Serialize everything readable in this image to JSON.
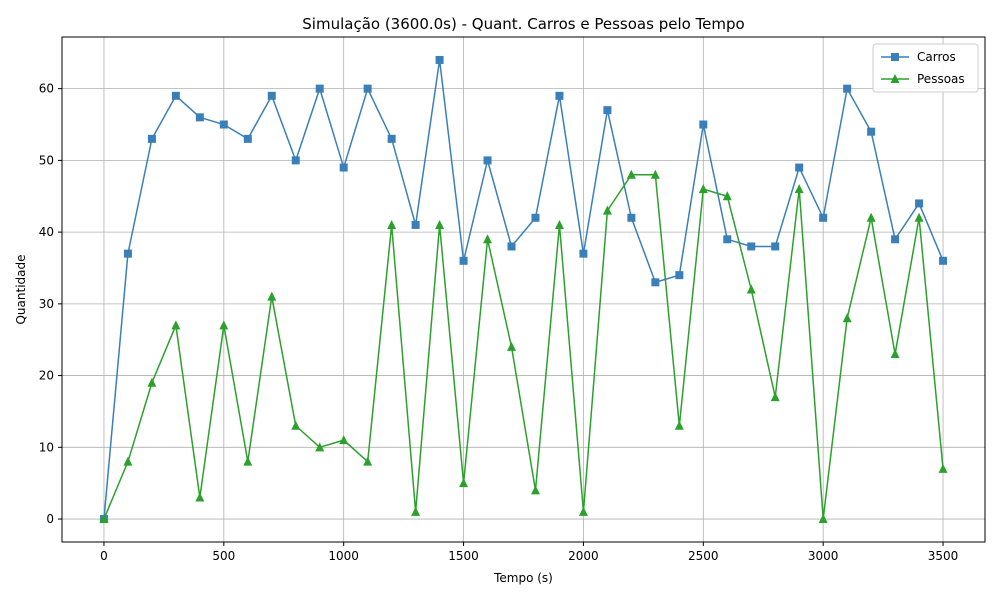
{
  "chart_data": {
    "type": "line",
    "title": "Simulação (3600.0s) - Quant. Carros e Pessoas pelo Tempo",
    "xlabel": "Tempo (s)",
    "ylabel": "Quantidade",
    "xlim": [
      -175,
      3675
    ],
    "ylim": [
      -3.2,
      67.2
    ],
    "xticks": [
      0,
      500,
      1000,
      1500,
      2000,
      2500,
      3000,
      3500
    ],
    "yticks": [
      0,
      10,
      20,
      30,
      40,
      50,
      60
    ],
    "grid": true,
    "legend_position": "top-right",
    "x": [
      0,
      100,
      200,
      300,
      400,
      500,
      600,
      700,
      800,
      900,
      1000,
      1100,
      1200,
      1300,
      1400,
      1500,
      1600,
      1700,
      1800,
      1900,
      2000,
      2100,
      2200,
      2300,
      2400,
      2500,
      2600,
      2700,
      2800,
      2900,
      3000,
      3100,
      3200,
      3300,
      3400,
      3500
    ],
    "series": [
      {
        "name": "Carros",
        "color": "#3a7fb8",
        "marker": "square",
        "values": [
          0,
          37,
          53,
          59,
          56,
          55,
          53,
          59,
          50,
          60,
          49,
          60,
          53,
          41,
          64,
          36,
          50,
          38,
          42,
          59,
          37,
          57,
          42,
          33,
          34,
          55,
          39,
          38,
          38,
          49,
          42,
          60,
          54,
          39,
          44,
          36
        ]
      },
      {
        "name": "Pessoas",
        "color": "#2ca02c",
        "marker": "triangle",
        "values": [
          0,
          8,
          19,
          27,
          3,
          27,
          8,
          31,
          13,
          10,
          11,
          8,
          41,
          1,
          41,
          5,
          39,
          24,
          4,
          41,
          1,
          43,
          48,
          48,
          13,
          46,
          45,
          32,
          17,
          46,
          0,
          28,
          42,
          23,
          42,
          7
        ]
      }
    ]
  }
}
